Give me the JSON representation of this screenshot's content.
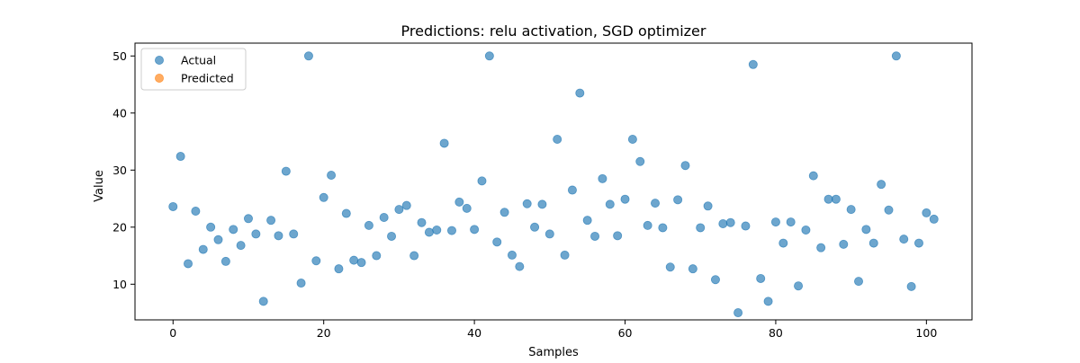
{
  "chart_data": {
    "type": "scatter",
    "title": "Predictions: relu activation, SGD optimizer",
    "xlabel": "Samples",
    "ylabel": "Value",
    "xlim": [
      -5.05,
      106.05
    ],
    "ylim": [
      3.75,
      52.25
    ],
    "xticks": [
      0,
      20,
      40,
      60,
      80,
      100
    ],
    "yticks": [
      10,
      20,
      30,
      40,
      50
    ],
    "grid": false,
    "legend_position": "upper-left",
    "series": [
      {
        "name": "Actual",
        "color": "#1f77b4",
        "x": [
          0,
          1,
          2,
          3,
          4,
          5,
          6,
          7,
          8,
          9,
          10,
          11,
          12,
          13,
          14,
          15,
          16,
          17,
          18,
          19,
          20,
          21,
          22,
          23,
          24,
          25,
          26,
          27,
          28,
          29,
          30,
          31,
          32,
          33,
          34,
          35,
          36,
          37,
          38,
          39,
          40,
          41,
          42,
          43,
          44,
          45,
          46,
          47,
          48,
          49,
          50,
          51,
          52,
          53,
          54,
          55,
          56,
          57,
          58,
          59,
          60,
          61,
          62,
          63,
          64,
          65,
          66,
          67,
          68,
          69,
          70,
          71,
          72,
          73,
          74,
          75,
          76,
          77,
          78,
          79,
          80,
          81,
          82,
          83,
          84,
          85,
          86,
          87,
          88,
          89,
          90,
          91,
          92,
          93,
          94,
          95,
          96,
          97,
          98,
          99,
          100,
          101
        ],
        "y": [
          23.6,
          32.4,
          13.6,
          22.8,
          16.1,
          20.0,
          17.8,
          14.0,
          19.6,
          16.8,
          21.5,
          18.8,
          7.0,
          21.2,
          18.5,
          29.8,
          18.8,
          10.2,
          50.0,
          14.1,
          25.2,
          29.1,
          12.7,
          22.4,
          14.2,
          13.8,
          20.3,
          15.0,
          21.7,
          18.4,
          23.1,
          23.8,
          15.0,
          20.8,
          19.1,
          19.5,
          34.7,
          19.4,
          24.4,
          23.3,
          19.6,
          28.1,
          50.0,
          17.4,
          22.6,
          15.1,
          13.1,
          24.1,
          20.0,
          24.0,
          18.8,
          35.4,
          15.1,
          26.5,
          43.5,
          21.2,
          18.4,
          28.5,
          24.0,
          18.5,
          24.9,
          35.4,
          31.5,
          20.3,
          24.2,
          19.9,
          13.0,
          24.8,
          30.8,
          12.7,
          19.9,
          23.7,
          10.8,
          20.6,
          20.8,
          5.0,
          20.2,
          48.5,
          11.0,
          7.0,
          20.9,
          17.2,
          20.9,
          9.7,
          19.5,
          29.0,
          16.4,
          24.9,
          24.9,
          17.0,
          23.1,
          10.5,
          19.6,
          17.2,
          27.5,
          23.0,
          50.0,
          17.9,
          9.6,
          17.2,
          22.5,
          21.4
        ]
      },
      {
        "name": "Predicted",
        "color": "#ff7f0e",
        "x": [],
        "y": []
      }
    ]
  }
}
